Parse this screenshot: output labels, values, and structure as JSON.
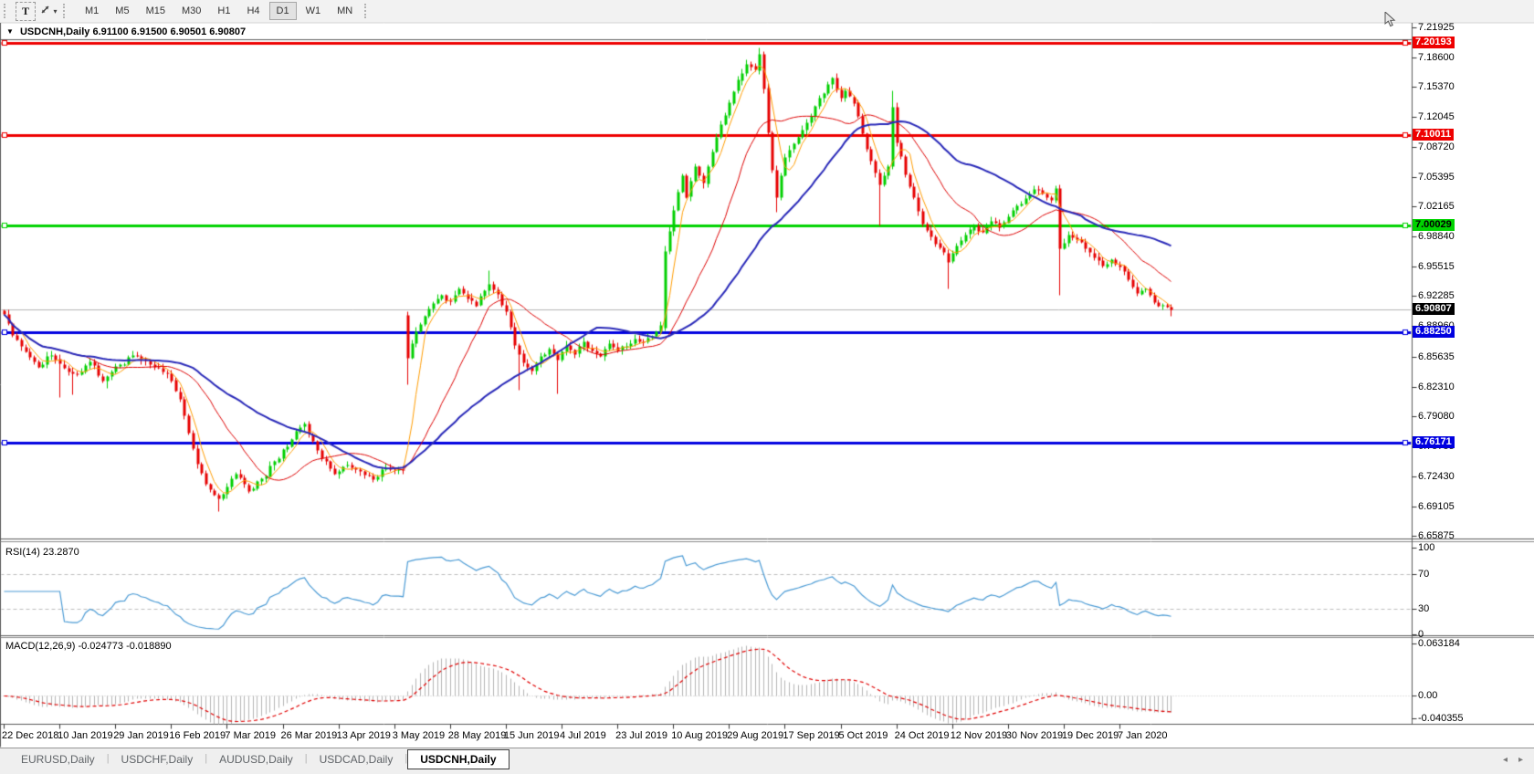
{
  "toolbar": {
    "text_tool_label": "T",
    "timeframes": [
      "M1",
      "M5",
      "M15",
      "M30",
      "H1",
      "H4",
      "D1",
      "W1",
      "MN"
    ],
    "active_timeframe": "D1"
  },
  "icons": {
    "caret_down": "▾",
    "collapse_triangle": "▼",
    "scroll_left": "◂",
    "scroll_right": "▸"
  },
  "tabs": {
    "items": [
      "EURUSD,Daily",
      "USDCHF,Daily",
      "AUDUSD,Daily",
      "USDCAD,Daily",
      "USDCNH,Daily"
    ],
    "active": "USDCNH,Daily"
  },
  "chart_data": {
    "type": "candlestick",
    "symbol": "USDCNH",
    "timeframe": "Daily",
    "title": "USDCNH,Daily",
    "quote_line": "6.91100 6.91500 6.90501 6.90807",
    "quote": {
      "open": "6.91100",
      "high": "6.91500",
      "low": "6.90501",
      "close": "6.90807"
    },
    "bars": 273,
    "current_price": 6.90807,
    "current_price_label": "6.90807",
    "candle_colors": {
      "bull": "#00cf00",
      "bear": "#e60000"
    },
    "price_axis": {
      "min": 6.6568,
      "max": 7.2238,
      "ticks": [
        "7.21925",
        "7.18600",
        "7.15370",
        "7.12045",
        "7.08720",
        "7.05395",
        "7.02165",
        "6.98840",
        "6.95515",
        "6.92285",
        "6.88960",
        "6.85635",
        "6.82310",
        "6.79080",
        "6.75755",
        "6.72430",
        "6.69105",
        "6.65875"
      ]
    },
    "time_axis": {
      "bars_per_label": 13,
      "labels": [
        "22 Dec 2018",
        "10 Jan 2019",
        "29 Jan 2019",
        "16 Feb 2019",
        "7 Mar 2019",
        "26 Mar 2019",
        "13 Apr 2019",
        "3 May 2019",
        "28 May 2019",
        "15 Jun 2019",
        "4 Jul 2019",
        "23 Jul 2019",
        "10 Aug 2019",
        "29 Aug 2019",
        "17 Sep 2019",
        "5 Oct 2019",
        "24 Oct 2019",
        "12 Nov 2019",
        "30 Nov 2019",
        "19 Dec 2019",
        "7 Jan 2020"
      ]
    },
    "horizontal_lines": [
      {
        "price": 7.20193,
        "label": "7.20193",
        "color": "#ee0000",
        "text_color": "#ffffff"
      },
      {
        "price": 7.10011,
        "label": "7.10011",
        "color": "#ee0000",
        "text_color": "#ffffff"
      },
      {
        "price": 7.00029,
        "label": "7.00029",
        "color": "#00d300",
        "text_color": "#000000"
      },
      {
        "price": 6.8825,
        "label": "6.88250",
        "color": "#0000e0",
        "text_color": "#ffffff"
      },
      {
        "price": 6.76171,
        "label": "6.76171",
        "color": "#0000e0",
        "text_color": "#ffffff"
      }
    ],
    "moving_averages": [
      {
        "period": 5,
        "color": "#ff9c00",
        "width": 1
      },
      {
        "period": 20,
        "color": "#dd0000",
        "width": 1
      },
      {
        "period": 45,
        "color": "#2929b8",
        "width": 2
      }
    ],
    "close_path_anchors": [
      [
        0,
        6.903
      ],
      [
        2,
        6.88
      ],
      [
        5,
        6.862
      ],
      [
        8,
        6.845
      ],
      [
        11,
        6.858
      ],
      [
        14,
        6.844
      ],
      [
        17,
        6.837
      ],
      [
        20,
        6.851
      ],
      [
        23,
        6.83
      ],
      [
        26,
        6.846
      ],
      [
        30,
        6.858
      ],
      [
        34,
        6.848
      ],
      [
        38,
        6.838
      ],
      [
        41,
        6.81
      ],
      [
        43,
        6.772
      ],
      [
        45,
        6.738
      ],
      [
        47,
        6.716
      ],
      [
        50,
        6.7
      ],
      [
        52,
        6.713
      ],
      [
        54,
        6.727
      ],
      [
        57,
        6.709
      ],
      [
        60,
        6.722
      ],
      [
        63,
        6.741
      ],
      [
        66,
        6.757
      ],
      [
        68,
        6.774
      ],
      [
        70,
        6.782
      ],
      [
        72,
        6.763
      ],
      [
        74,
        6.744
      ],
      [
        77,
        6.727
      ],
      [
        80,
        6.737
      ],
      [
        83,
        6.73
      ],
      [
        86,
        6.721
      ],
      [
        89,
        6.734
      ],
      [
        93,
        6.731
      ],
      [
        94,
        6.855
      ],
      [
        96,
        6.884
      ],
      [
        98,
        6.901
      ],
      [
        100,
        6.915
      ],
      [
        102,
        6.924
      ],
      [
        104,
        6.917
      ],
      [
        106,
        6.931
      ],
      [
        108,
        6.921
      ],
      [
        110,
        6.913
      ],
      [
        112,
        6.929
      ],
      [
        113,
        6.936
      ],
      [
        115,
        6.925
      ],
      [
        117,
        6.906
      ],
      [
        119,
        6.869
      ],
      [
        121,
        6.849
      ],
      [
        123,
        6.841
      ],
      [
        125,
        6.857
      ],
      [
        127,
        6.865
      ],
      [
        129,
        6.853
      ],
      [
        131,
        6.869
      ],
      [
        133,
        6.859
      ],
      [
        135,
        6.873
      ],
      [
        137,
        6.863
      ],
      [
        139,
        6.857
      ],
      [
        141,
        6.871
      ],
      [
        143,
        6.863
      ],
      [
        145,
        6.868
      ],
      [
        147,
        6.876
      ],
      [
        149,
        6.873
      ],
      [
        151,
        6.879
      ],
      [
        153,
        6.891
      ],
      [
        154,
        6.972
      ],
      [
        156,
        7.018
      ],
      [
        158,
        7.056
      ],
      [
        159,
        7.032
      ],
      [
        161,
        7.066
      ],
      [
        163,
        7.047
      ],
      [
        165,
        7.082
      ],
      [
        167,
        7.112
      ],
      [
        169,
        7.136
      ],
      [
        171,
        7.161
      ],
      [
        173,
        7.179
      ],
      [
        175,
        7.172
      ],
      [
        176,
        7.19
      ],
      [
        177,
        7.152
      ],
      [
        178,
        7.103
      ],
      [
        179,
        7.062
      ],
      [
        180,
        7.032
      ],
      [
        181,
        7.056
      ],
      [
        182,
        7.076
      ],
      [
        184,
        7.091
      ],
      [
        186,
        7.106
      ],
      [
        188,
        7.121
      ],
      [
        190,
        7.141
      ],
      [
        192,
        7.156
      ],
      [
        193,
        7.163
      ],
      [
        195,
        7.141
      ],
      [
        196,
        7.149
      ],
      [
        198,
        7.136
      ],
      [
        200,
        7.102
      ],
      [
        202,
        7.072
      ],
      [
        204,
        7.046
      ],
      [
        206,
        7.066
      ],
      [
        207,
        7.131
      ],
      [
        208,
        7.092
      ],
      [
        210,
        7.057
      ],
      [
        212,
        7.032
      ],
      [
        214,
        7.003
      ],
      [
        216,
        6.989
      ],
      [
        218,
        6.976
      ],
      [
        220,
        6.961
      ],
      [
        222,
        6.979
      ],
      [
        224,
        6.991
      ],
      [
        226,
        7.001
      ],
      [
        228,
        6.993
      ],
      [
        230,
        7.006
      ],
      [
        232,
        6.999
      ],
      [
        234,
        7.011
      ],
      [
        236,
        7.023
      ],
      [
        238,
        7.031
      ],
      [
        240,
        7.041
      ],
      [
        242,
        7.036
      ],
      [
        244,
        7.029
      ],
      [
        245,
        7.042
      ],
      [
        246,
        6.976
      ],
      [
        248,
        6.991
      ],
      [
        250,
        6.986
      ],
      [
        252,
        6.976
      ],
      [
        254,
        6.966
      ],
      [
        256,
        6.956
      ],
      [
        258,
        6.963
      ],
      [
        260,
        6.956
      ],
      [
        262,
        6.941
      ],
      [
        264,
        6.926
      ],
      [
        266,
        6.931
      ],
      [
        268,
        6.916
      ],
      [
        270,
        6.913
      ],
      [
        272,
        6.908
      ]
    ],
    "open_overrides": {
      "94": 6.902,
      "154": 6.888
    },
    "wick_overrides": {
      "13": {
        "low": 6.812
      },
      "16": {
        "low": 6.815
      },
      "24": {
        "low": 6.822
      },
      "50": {
        "low": 6.686
      },
      "94": {
        "low": 6.826
      },
      "113": {
        "high": 6.951
      },
      "120": {
        "low": 6.82
      },
      "129": {
        "low": 6.8155
      },
      "154": {
        "high": 6.979
      },
      "176": {
        "high": 7.1965
      },
      "180": {
        "low": 7.016
      },
      "204": {
        "low": 7.001
      },
      "207": {
        "high": 7.149
      },
      "220": {
        "low": 6.931
      },
      "246": {
        "low": 6.924
      },
      "272": {
        "low": 6.901
      }
    },
    "indicators": {
      "rsi": {
        "label": "RSI(14) 23.2870",
        "period": 14,
        "value": 23.287,
        "levels": [
          70,
          30
        ],
        "scale": [
          "100",
          "70",
          "30",
          "0"
        ],
        "color": "#4a9ad4"
      },
      "macd": {
        "label": "MACD(12,26,9) -0.024773 -0.018890",
        "params": [
          12,
          26,
          9
        ],
        "value": -0.024773,
        "signal_value": -0.01889,
        "scale": [
          "0.063184",
          "0.00",
          "-0.040355"
        ],
        "histogram_color": "#b4b4b4",
        "signal_color": "#e00000"
      }
    }
  }
}
